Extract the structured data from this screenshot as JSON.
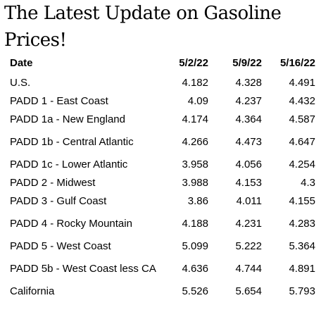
{
  "title": "The Latest Update on Gasoline Prices!",
  "chart_data": {
    "type": "table",
    "columns": [
      "Date",
      "5/2/22",
      "5/9/22",
      "5/16/22"
    ],
    "rows": [
      {
        "label": "U.S.",
        "values": [
          "4.182",
          "4.328",
          "4.491"
        ]
      },
      {
        "label": "PADD 1 - East Coast",
        "values": [
          "4.09",
          "4.237",
          "4.432"
        ]
      },
      {
        "label": "PADD 1a - New England",
        "values": [
          "4.174",
          "4.364",
          "4.587"
        ]
      },
      {
        "label": "PADD 1b - Central Atlantic",
        "values": [
          "4.266",
          "4.473",
          "4.647"
        ]
      },
      {
        "label": "PADD 1c - Lower Atlantic",
        "values": [
          "3.958",
          "4.056",
          "4.254"
        ]
      },
      {
        "label": "PADD 2 - Midwest",
        "values": [
          "3.988",
          "4.153",
          "4.3"
        ]
      },
      {
        "label": "PADD 3 - Gulf Coast",
        "values": [
          "3.86",
          "4.011",
          "4.155"
        ]
      },
      {
        "label": "PADD 4 - Rocky Mountain",
        "values": [
          "4.188",
          "4.231",
          "4.283"
        ]
      },
      {
        "label": "PADD 5 - West Coast",
        "values": [
          "5.099",
          "5.222",
          "5.364"
        ]
      },
      {
        "label": "PADD 5b - West Coast less CA",
        "values": [
          "4.636",
          "4.744",
          "4.891"
        ]
      },
      {
        "label": "California",
        "values": [
          "5.526",
          "5.654",
          "5.793"
        ]
      }
    ]
  }
}
